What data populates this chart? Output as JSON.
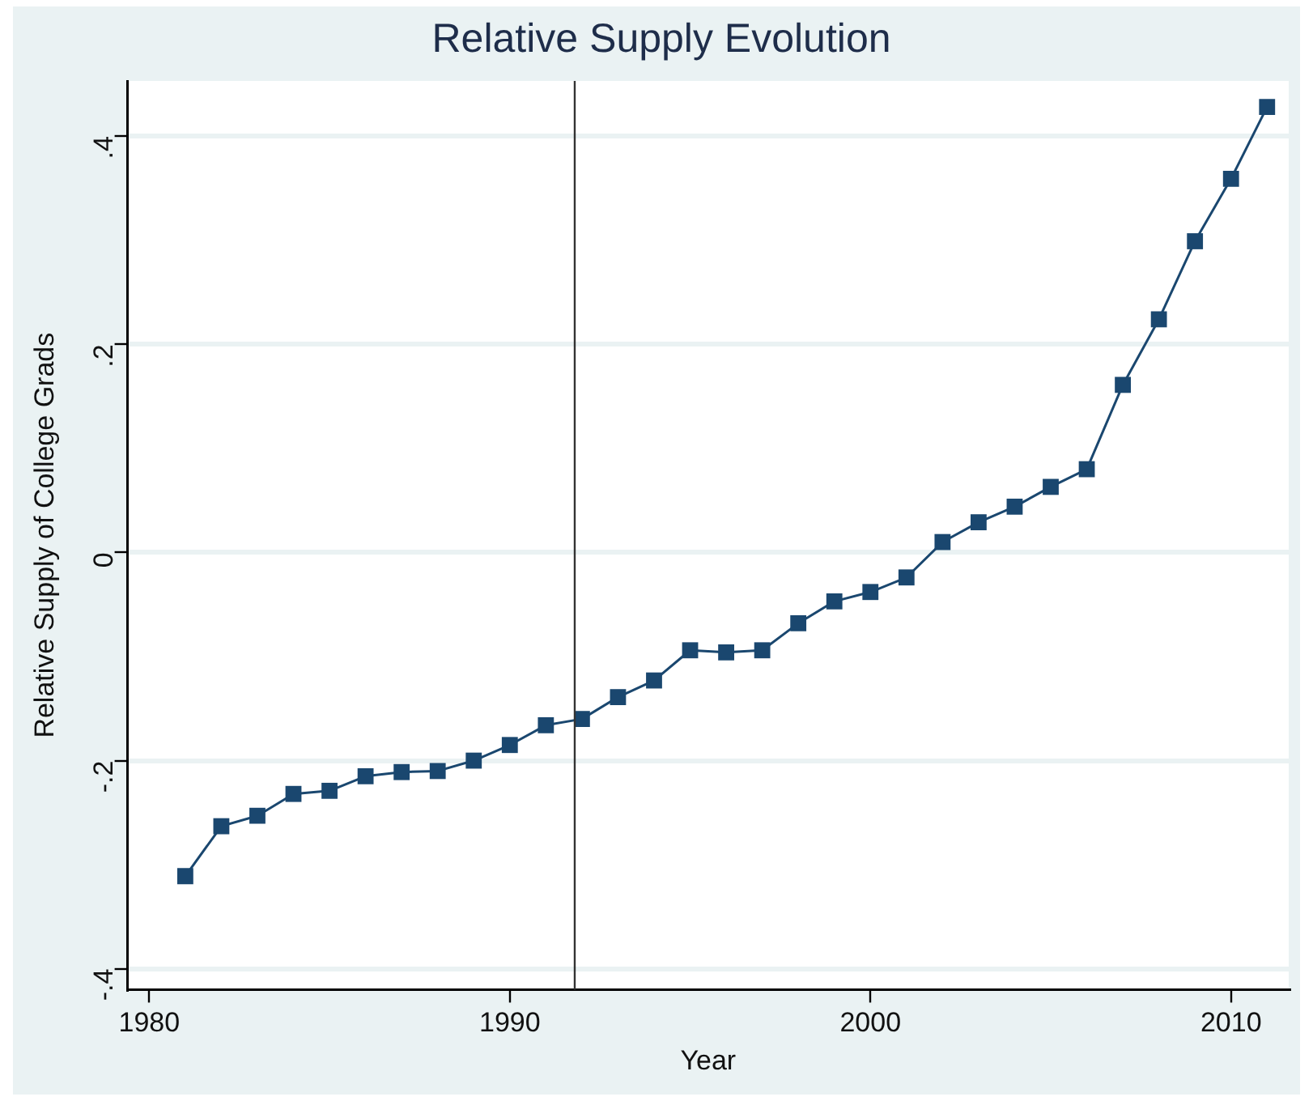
{
  "chart_data": {
    "type": "line",
    "title": "Relative Supply Evolution",
    "xlabel": "Year",
    "ylabel": "Relative Supply of College Grads",
    "x": [
      1981,
      1982,
      1983,
      1984,
      1985,
      1986,
      1987,
      1988,
      1989,
      1990,
      1991,
      1992,
      1993,
      1994,
      1995,
      1996,
      1997,
      1998,
      1999,
      2000,
      2001,
      2002,
      2003,
      2004,
      2005,
      2006,
      2007,
      2008,
      2009,
      2010,
      2011
    ],
    "series": [
      {
        "color": "#1a476f",
        "values": [
          -0.311,
          -0.263,
          -0.253,
          -0.232,
          -0.229,
          -0.215,
          -0.211,
          -0.21,
          -0.2,
          -0.185,
          -0.166,
          -0.16,
          -0.139,
          -0.123,
          -0.094,
          -0.096,
          -0.094,
          -0.068,
          -0.047,
          -0.038,
          -0.024,
          0.01,
          0.029,
          0.044,
          0.063,
          0.08,
          0.161,
          0.224,
          0.299,
          0.359,
          0.428
        ]
      }
    ],
    "xlim": [
      1979.4,
      2011.6
    ],
    "xticks": [
      1980,
      1990,
      2000,
      2010
    ],
    "ylim": [
      -0.42,
      0.453
    ],
    "yticks": [
      {
        "value": -0.4,
        "label": "-.4"
      },
      {
        "value": -0.2,
        "label": "-.2"
      },
      0,
      {
        "value": 0.2,
        "label": ".2"
      },
      {
        "value": 0.4,
        "label": ".4"
      }
    ],
    "ref_lines": [
      {
        "axis": "x",
        "value": 1991.8,
        "color": "#333333"
      }
    ],
    "grid": "y",
    "legend": false,
    "marker": "square",
    "line_style": "solid"
  }
}
